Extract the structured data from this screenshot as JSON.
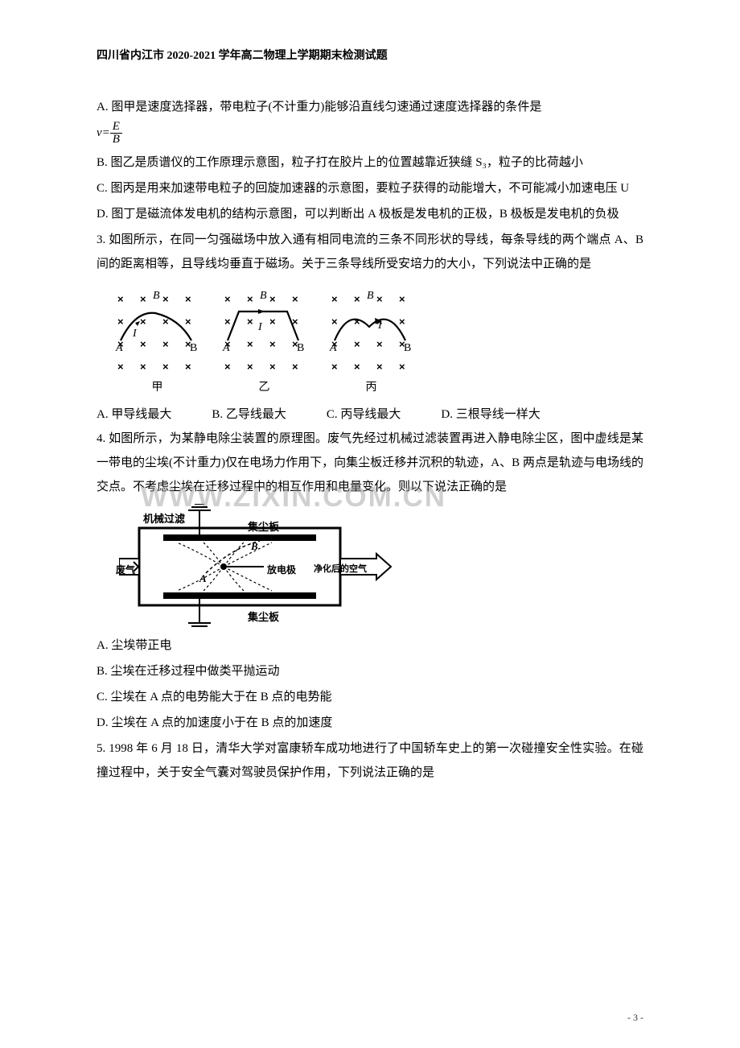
{
  "header": "四川省内江市 2020-2021 学年高二物理上学期期末检测试题",
  "q2": {
    "optA_pre": "A. 图甲是速度选择器，带电粒子(不计重力)能够沿直线匀速通过速度选择器的条件是",
    "optA_vlabel": "v=",
    "optA_num": "E",
    "optA_den": "B",
    "optB": "B. 图乙是质谱仪的工作原理示意图，粒子打在胶片上的位置越靠近狭缝 S₃，粒子的比荷越小",
    "optC": "C. 图丙是用来加速带电粒子的回旋加速器的示意图，要粒子获得的动能增大，不可能减小加速电压 U",
    "optD": "D. 图丁是磁流体发电机的结构示意图，可以判断出 A 极板是发电机的正极，B 极板是发电机的负极"
  },
  "q3": {
    "stem": "3. 如图所示，在同一匀强磁场中放入通有相同电流的三条不同形状的导线，每条导线的两个端点 A、B 间的距离相等，且导线均垂直于磁场。关于三条导线所受安培力的大小，下列说法中正确的是",
    "panels": [
      "甲",
      "乙",
      "丙"
    ],
    "sym_B": "B",
    "sym_A": "A",
    "sym_I": "I",
    "optA": "A. 甲导线最大",
    "optB": "B. 乙导线最大",
    "optC": "C. 丙导线最大",
    "optD": "D. 三根导线一样大"
  },
  "q4": {
    "stem": "4. 如图所示，为某静电除尘装置的原理图。废气先经过机械过滤装置再进入静电除尘区，图中虚线是某一带电的尘埃(不计重力)仅在电场力作用下，向集尘板迁移并沉积的轨迹，A、B 两点是轨迹与电场线的交点。不考虑尘埃在迁移过程中的相互作用和电量变化。则以下说法正确的是",
    "labels": {
      "filter": "机械过滤",
      "top_plate": "集尘板",
      "bottom_plate": "集尘板",
      "electrode": "放电极",
      "gas_in": "废气",
      "gas_out": "净化后的空气",
      "ptA": "A",
      "ptB": "B"
    },
    "optA": "A. 尘埃带正电",
    "optB": "B. 尘埃在迁移过程中做类平抛运动",
    "optC": "C. 尘埃在 A 点的电势能大于在 B 点的电势能",
    "optD": "D. 尘埃在 A 点的加速度小于在 B 点的加速度"
  },
  "q5": {
    "stem": "5. 1998 年 6 月 18 日，清华大学对富康轿车成功地进行了中国轿车史上的第一次碰撞安全性实验。在碰撞过程中，关于安全气囊对驾驶员保护作用，下列说法正确的是"
  },
  "watermark": "WWW.ZIXIN.COM.CN",
  "page_num": "- 3 -",
  "style": {
    "x_color": "#000000",
    "line_color": "#000000",
    "background": "#ffffff"
  }
}
